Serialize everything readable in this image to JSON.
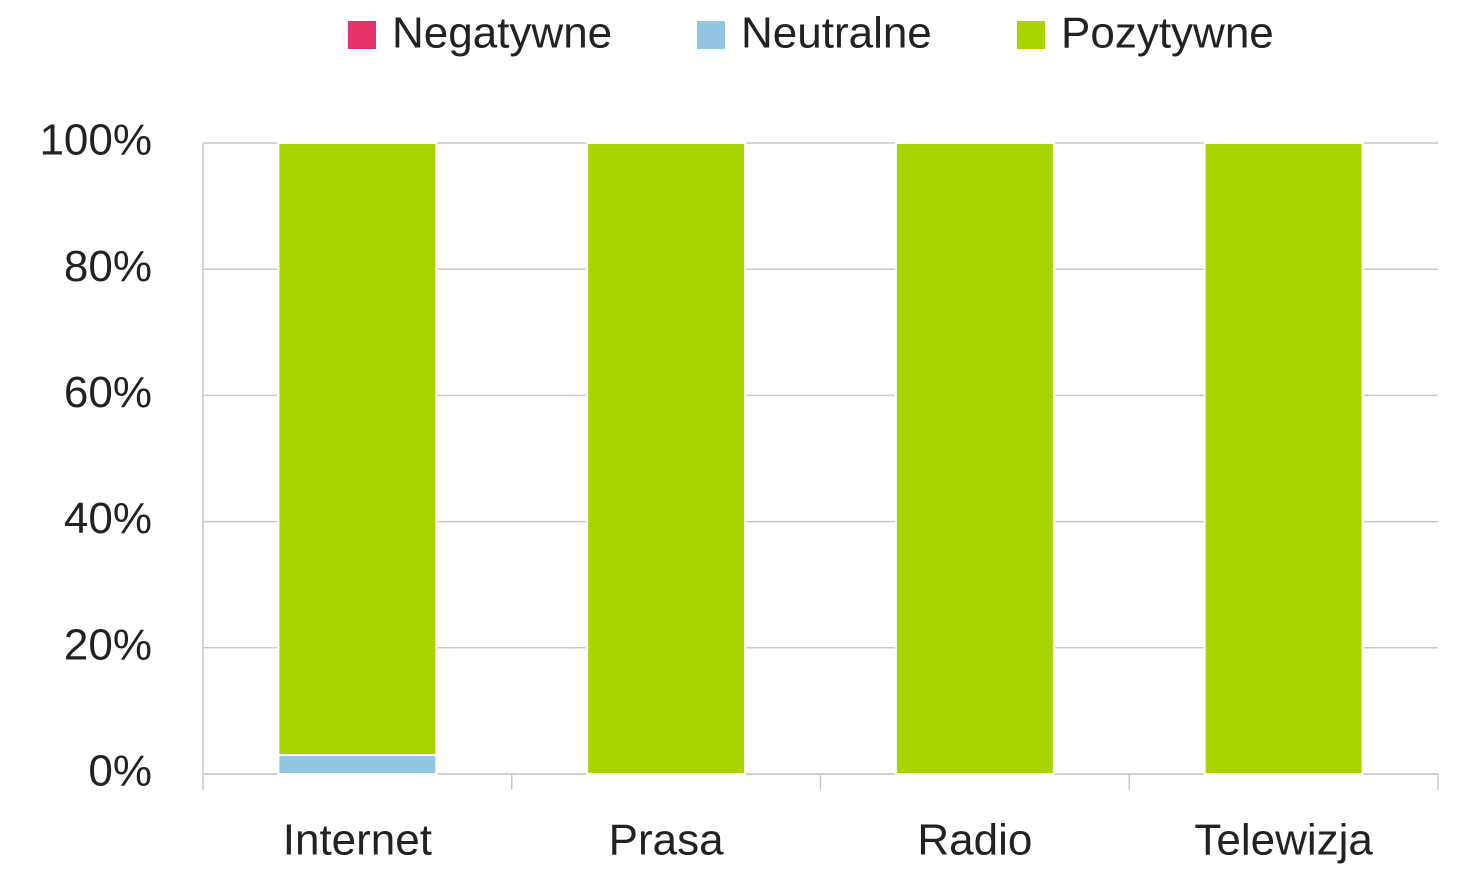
{
  "chart_data": {
    "type": "stacked_bar",
    "categories": [
      "Internet",
      "Prasa",
      "Radio",
      "Telewizja"
    ],
    "series": [
      {
        "name": "Negatywne",
        "color": "#e8336a",
        "values": [
          0,
          0,
          0,
          0
        ]
      },
      {
        "name": "Neutralne",
        "color": "#92c6e2",
        "values": [
          3,
          0,
          0,
          0
        ]
      },
      {
        "name": "Pozytywne",
        "color": "#aad400",
        "values": [
          97,
          100,
          100,
          100
        ]
      }
    ],
    "ylim": [
      0,
      100
    ],
    "yticks": [
      {
        "value": 0,
        "label": "0%"
      },
      {
        "value": 20,
        "label": "20%"
      },
      {
        "value": 40,
        "label": "40%"
      },
      {
        "value": 60,
        "label": "60%"
      },
      {
        "value": 80,
        "label": "80%"
      },
      {
        "value": 100,
        "label": "100%"
      }
    ],
    "grid": true,
    "legend": "top"
  }
}
